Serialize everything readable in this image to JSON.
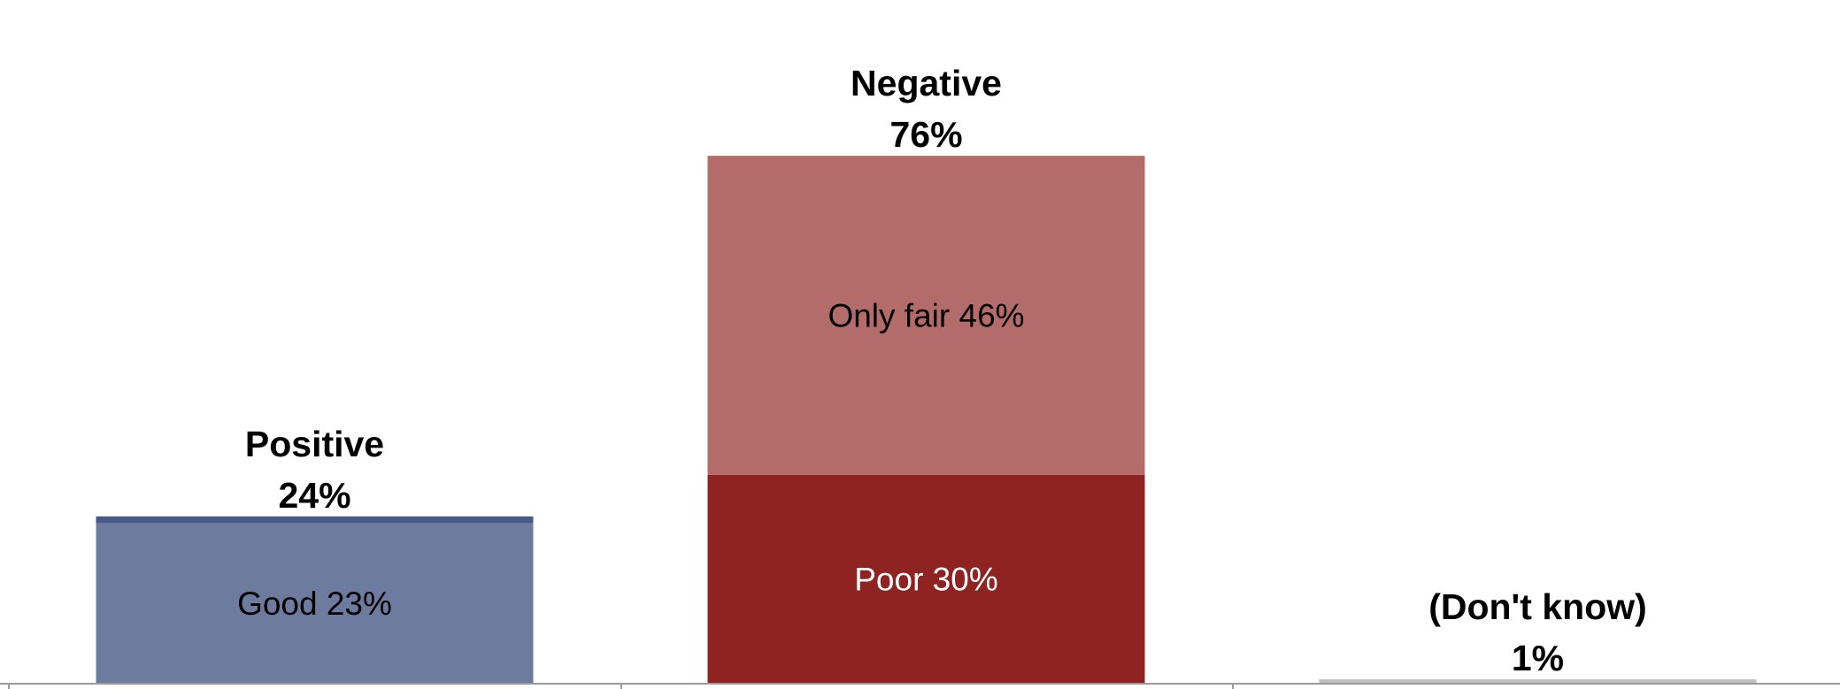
{
  "chart_data": {
    "type": "bar",
    "stacked": true,
    "ylim": [
      0,
      80
    ],
    "grid": false,
    "legend": "none",
    "groups": [
      {
        "label": "Positive",
        "total_label": "24%",
        "segments": [
          {
            "label": "Good 23%",
            "value": 23,
            "color": "#6d7b9e",
            "text_color": "#000000"
          },
          {
            "label": "",
            "value": 1,
            "color": "#4a5a86",
            "text_color": "#000000"
          }
        ]
      },
      {
        "label": "Negative",
        "total_label": "76%",
        "segments": [
          {
            "label": "Poor 30%",
            "value": 30,
            "color": "#8e2322",
            "text_color": "#ffffff"
          },
          {
            "label": "Only fair 46%",
            "value": 46,
            "color": "#b36c69",
            "text_color": "#000000"
          }
        ]
      },
      {
        "label": "(Don't know)",
        "total_label": "1%",
        "segments": [
          {
            "label": "",
            "value": 0.5,
            "color": "#bfbfbf",
            "text_color": "#000000"
          }
        ]
      }
    ]
  }
}
